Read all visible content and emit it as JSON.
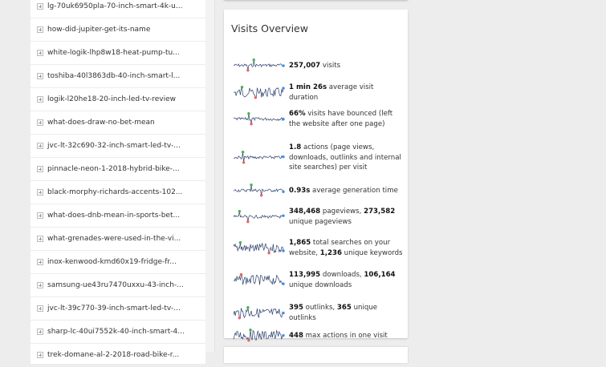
{
  "left_list": {
    "items": [
      "lg-70uk6950pla-70-inch-smart-4k-u...",
      "how-did-jupiter-get-its-name",
      "white-logik-lhp8w18-heat-pump-tu...",
      "toshiba-40l3863db-40-inch-smart-l...",
      "logik-l20he18-20-inch-led-tv-review",
      "what-does-draw-no-bet-mean",
      "jvc-lt-32c690-32-inch-smart-led-tv-...",
      "pinnacle-neon-1-2018-hybrid-bike-...",
      "black-morphy-richards-accents-102...",
      "what-does-dnb-mean-in-sports-bet...",
      "what-grenades-were-used-in-the-vi...",
      "inox-kenwood-kmd60x19-fridge-fr...",
      "samsung-ue43ru7470uxxu-43-inch-...",
      "jvc-lt-39c770-39-inch-smart-led-tv-...",
      "sharp-lc-40ui7552k-40-inch-smart-4...",
      "trek-domane-al-2-2018-road-bike-r..."
    ]
  },
  "visits_overview": {
    "title": "Visits Overview",
    "colors": {
      "line": "#2b3f6b",
      "max": "#4caf50",
      "min": "#f06060",
      "last": "#3b8ff0"
    },
    "metrics": [
      {
        "parts": [
          {
            "b": "257,007"
          },
          {
            "t": " visits"
          }
        ]
      },
      {
        "parts": [
          {
            "b": "1 min 26s"
          },
          {
            "t": " average visit duration"
          }
        ]
      },
      {
        "parts": [
          {
            "b": "66%"
          },
          {
            "t": " visits have bounced (left the website after one page)"
          }
        ]
      },
      {
        "parts": [
          {
            "b": "1.8"
          },
          {
            "t": " actions (page views, downloads, outlinks and internal site searches) per visit"
          }
        ]
      },
      {
        "parts": [
          {
            "b": "0.93s"
          },
          {
            "t": " average generation time"
          }
        ]
      },
      {
        "parts": [
          {
            "b": "348,468"
          },
          {
            "t": " pageviews, "
          },
          {
            "b": "273,582"
          },
          {
            "t": " unique pageviews"
          }
        ]
      },
      {
        "parts": [
          {
            "b": "1,865"
          },
          {
            "t": " total searches on your website, "
          },
          {
            "b": "1,236"
          },
          {
            "t": " unique keywords"
          }
        ]
      },
      {
        "parts": [
          {
            "b": "113,995"
          },
          {
            "t": " downloads, "
          },
          {
            "b": "106,164"
          },
          {
            "t": " unique downloads"
          }
        ]
      },
      {
        "parts": [
          {
            "b": "395"
          },
          {
            "t": " outlinks, "
          },
          {
            "b": "365"
          },
          {
            "t": " unique outlinks"
          }
        ]
      },
      {
        "parts": [
          {
            "b": "448"
          },
          {
            "t": " max actions in one visit"
          }
        ]
      }
    ]
  }
}
